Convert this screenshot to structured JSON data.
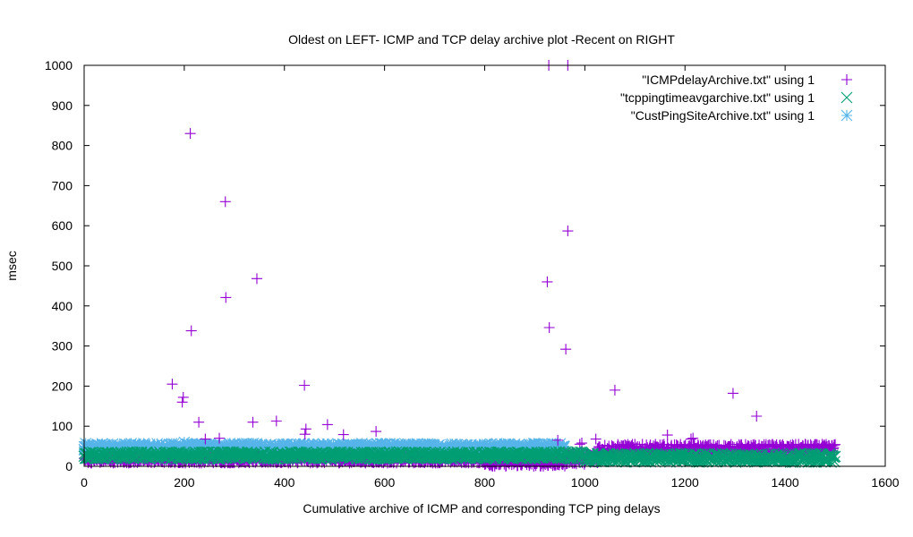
{
  "chart_data": {
    "type": "scatter",
    "title": "Oldest on LEFT- ICMP and TCP delay archive plot -Recent on RIGHT",
    "xlabel": "Cumulative archive of ICMP and corresponding TCP ping delays",
    "ylabel": "msec",
    "xlim": [
      0,
      1600
    ],
    "ylim": [
      0,
      1000
    ],
    "xticks": [
      "0",
      "200",
      "400",
      "600",
      "800",
      "1000",
      "1200",
      "1400",
      "1600"
    ],
    "yticks": [
      "0",
      "100",
      "200",
      "300",
      "400",
      "500",
      "600",
      "700",
      "800",
      "900",
      "1000"
    ],
    "legend_position": "top-right",
    "series": [
      {
        "name": "\"ICMPdelayArchive.txt\" using 1",
        "color": "#9400d3",
        "marker": "plus",
        "outliers": [
          [
            176,
            205
          ],
          [
            196,
            160
          ],
          [
            198,
            172
          ],
          [
            212,
            830
          ],
          [
            214,
            338
          ],
          [
            229,
            110
          ],
          [
            242,
            68
          ],
          [
            270,
            70
          ],
          [
            282,
            660
          ],
          [
            283,
            421
          ],
          [
            337,
            110
          ],
          [
            345,
            468
          ],
          [
            384,
            113
          ],
          [
            440,
            202
          ],
          [
            441,
            80
          ],
          [
            443,
            93
          ],
          [
            486,
            104
          ],
          [
            518,
            79
          ],
          [
            583,
            87
          ],
          [
            925,
            460
          ],
          [
            928,
            1000
          ],
          [
            929,
            346
          ],
          [
            946,
            65
          ],
          [
            962,
            292
          ],
          [
            966,
            587
          ],
          [
            966,
            1000
          ],
          [
            990,
            55
          ],
          [
            994,
            58
          ],
          [
            1022,
            68
          ],
          [
            1060,
            190
          ],
          [
            1100,
            55
          ],
          [
            1165,
            78
          ],
          [
            1212,
            68
          ],
          [
            1216,
            70
          ],
          [
            1296,
            182
          ],
          [
            1343,
            125
          ],
          [
            1440,
            55
          ]
        ],
        "baseline_segments": [
          {
            "x_range": [
              0,
              800
            ],
            "y_min": 8,
            "y_max": 26
          },
          {
            "x_range": [
              800,
              960
            ],
            "y_min": 0,
            "y_max": 20
          },
          {
            "x_range": [
              960,
              1025
            ],
            "y_min": 5,
            "y_max": 35
          },
          {
            "x_range": [
              1025,
              1500
            ],
            "y_min": 28,
            "y_max": 55
          }
        ]
      },
      {
        "name": "\"tcppingtimeavgarchive.txt\" using 1",
        "color": "#009e73",
        "marker": "x",
        "baseline_segments": [
          {
            "x_range": [
              0,
              1000
            ],
            "y_min": 18,
            "y_max": 36
          },
          {
            "x_range": [
              1000,
              1500
            ],
            "y_min": 10,
            "y_max": 32
          }
        ]
      },
      {
        "name": "\"CustPingSiteArchive.txt\" using 1",
        "color": "#56b4e9",
        "marker": "star",
        "baseline_segments": [
          {
            "x_range": [
              0,
              960
            ],
            "y_min": 33,
            "y_max": 57
          }
        ],
        "extra_points": [
          [
            0,
            42
          ],
          [
            200,
            60
          ],
          [
            620,
            50
          ],
          [
            630,
            35
          ]
        ]
      }
    ]
  }
}
